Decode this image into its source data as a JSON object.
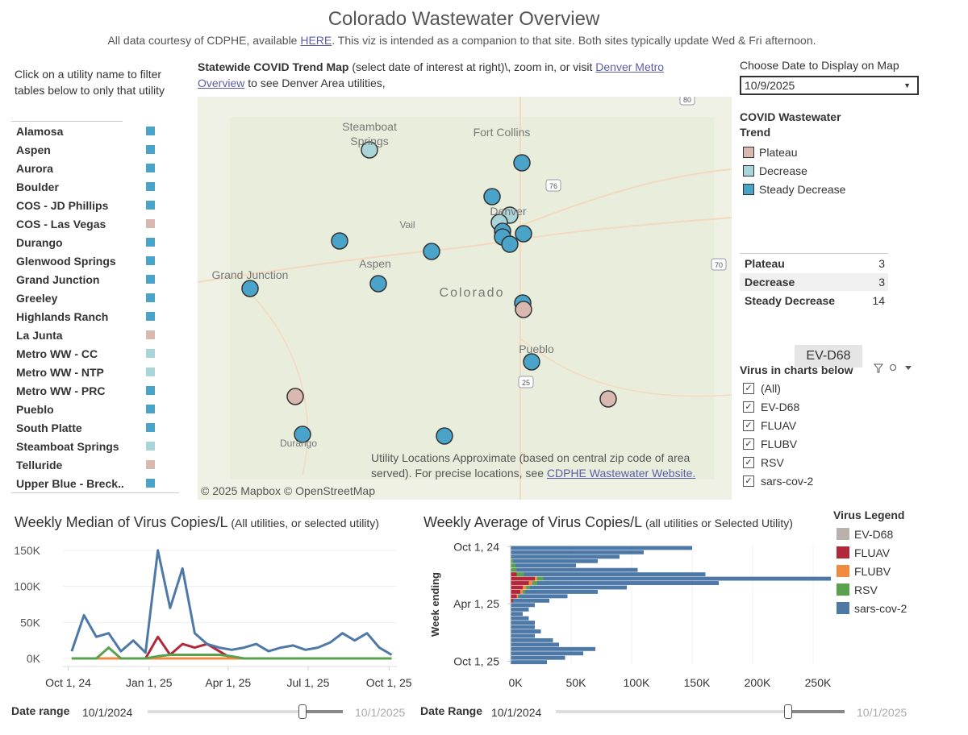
{
  "header": {
    "title": "Colorado Wastewater Overview",
    "subtitle_pre": "All data courtesy of CDPHE, available ",
    "subtitle_link": "HERE",
    "subtitle_post": ". This viz is intended as a companion to that site. Both sites typically update Wed & Fri afternoon."
  },
  "sidebar": {
    "instruction": "Click on a utility name to filter tables below to only that utility",
    "utilities": [
      {
        "name": "Alamosa",
        "color": "#4aa3c8"
      },
      {
        "name": "Aspen",
        "color": "#4aa3c8"
      },
      {
        "name": "Aurora",
        "color": "#4aa3c8"
      },
      {
        "name": "Boulder",
        "color": "#4aa3c8"
      },
      {
        "name": "COS - JD Phillips",
        "color": "#4aa3c8"
      },
      {
        "name": "COS - Las Vegas",
        "color": "#d9b8b0"
      },
      {
        "name": "Durango",
        "color": "#4aa3c8"
      },
      {
        "name": "Glenwood Springs",
        "color": "#4aa3c8"
      },
      {
        "name": "Grand Junction",
        "color": "#4aa3c8"
      },
      {
        "name": "Greeley",
        "color": "#4aa3c8"
      },
      {
        "name": "Highlands Ranch",
        "color": "#4aa3c8"
      },
      {
        "name": "La Junta",
        "color": "#d9b8b0"
      },
      {
        "name": "Metro WW - CC",
        "color": "#a9d5d8"
      },
      {
        "name": "Metro WW - NTP",
        "color": "#a9d5d8"
      },
      {
        "name": "Metro WW - PRC",
        "color": "#4aa3c8"
      },
      {
        "name": "Pueblo",
        "color": "#4aa3c8"
      },
      {
        "name": "South Platte",
        "color": "#4aa3c8"
      },
      {
        "name": "Steamboat Springs",
        "color": "#a9d5d8"
      },
      {
        "name": "Telluride",
        "color": "#d9b8b0"
      },
      {
        "name": "Upper Blue - Breck..",
        "color": "#4aa3c8"
      }
    ]
  },
  "map": {
    "heading_bold": "Statewide COVID Trend Map",
    "heading_rest": " (select date of interest at right)\\, zoom in, or visit ",
    "heading_link": "Denver Metro Overview",
    "heading_end": "  to see Denver Area  utilities,",
    "places": [
      "Steamboat",
      "Springs",
      "Fort Collins",
      "Denver",
      "Vail",
      "Aspen",
      "Grand Junction",
      "Colorado",
      "Pueblo",
      "Durango"
    ],
    "shields": [
      "80",
      "76",
      "70",
      "25"
    ],
    "note": "Utility Locations Approximate (based on central zip code of area served).  For precise locations, see ",
    "note_link": "CDPHE Wastewater Website.",
    "attribution": "© 2025 Mapbox © OpenStreetMap"
  },
  "date_picker": {
    "label": "Choose Date to Display on Map",
    "value": "10/9/2025"
  },
  "trend_legend": {
    "title": "COVID Wastewater Trend",
    "items": [
      {
        "name": "Plateau",
        "color": "#d9b8b0"
      },
      {
        "name": "Decrease",
        "color": "#a9d5d8"
      },
      {
        "name": "Steady Decrease",
        "color": "#4aa3c8"
      }
    ]
  },
  "trend_counts": [
    {
      "name": "Plateau",
      "count": 3
    },
    {
      "name": "Decrease",
      "count": 3
    },
    {
      "name": "Steady Decrease",
      "count": 14
    }
  ],
  "tooltip": "EV-D68",
  "virus_filter": {
    "title": "Virus in charts below",
    "options": [
      "(All)",
      "EV-D68",
      "FLUAV",
      "FLUBV",
      "RSV",
      "sars-cov-2"
    ]
  },
  "chart_data": [
    {
      "type": "line",
      "title": "Weekly Median of Virus Copies/L",
      "subtitle": " (All utilities, or selected utility)",
      "x": [
        "2024-10-05",
        "2024-10-19",
        "2024-11-02",
        "2024-11-16",
        "2024-11-30",
        "2024-12-14",
        "2024-12-28",
        "2025-01-11",
        "2025-01-25",
        "2025-02-08",
        "2025-02-22",
        "2025-03-08",
        "2025-03-22",
        "2025-04-05",
        "2025-04-19",
        "2025-05-03",
        "2025-05-17",
        "2025-05-31",
        "2025-06-14",
        "2025-06-28",
        "2025-07-12",
        "2025-07-26",
        "2025-08-09",
        "2025-08-23",
        "2025-09-06",
        "2025-09-20",
        "2025-10-04"
      ],
      "series": [
        {
          "name": "EV-D68",
          "color": "#bab0ac",
          "values": [
            0,
            0,
            0,
            0,
            0,
            0,
            0,
            0,
            0,
            0,
            0,
            0,
            0,
            0,
            0,
            0,
            0,
            0,
            0,
            0,
            0,
            0,
            0,
            0,
            0,
            0,
            0
          ]
        },
        {
          "name": "FLUAV",
          "color": "#b1283a",
          "values": [
            0,
            0,
            0,
            0,
            0,
            0,
            0,
            30000,
            5000,
            20000,
            15000,
            20000,
            10000,
            0,
            0,
            0,
            0,
            0,
            0,
            0,
            0,
            0,
            0,
            0,
            0,
            0,
            0
          ]
        },
        {
          "name": "FLUBV",
          "color": "#ef8a3e",
          "values": [
            0,
            0,
            0,
            0,
            0,
            0,
            0,
            0,
            0,
            0,
            0,
            0,
            0,
            0,
            0,
            0,
            0,
            0,
            0,
            0,
            0,
            0,
            0,
            0,
            0,
            0,
            0
          ]
        },
        {
          "name": "RSV",
          "color": "#59a14f",
          "values": [
            0,
            0,
            0,
            15000,
            0,
            0,
            0,
            3000,
            5000,
            5000,
            5000,
            5000,
            5000,
            3000,
            0,
            0,
            0,
            0,
            0,
            0,
            0,
            0,
            0,
            0,
            0,
            0,
            0
          ]
        },
        {
          "name": "sars-cov-2",
          "color": "#4e79a7",
          "values": [
            10000,
            60000,
            30000,
            35000,
            10000,
            25000,
            8000,
            150000,
            70000,
            125000,
            35000,
            20000,
            15000,
            12000,
            15000,
            20000,
            10000,
            15000,
            18000,
            12000,
            15000,
            22000,
            35000,
            25000,
            35000,
            15000,
            5000
          ]
        }
      ],
      "xlim": [
        "2024-09-25",
        "2025-10-10"
      ],
      "xticks": [
        {
          "value": "2024-10-01",
          "label": "Oct 1, 24"
        },
        {
          "value": "2025-01-01",
          "label": "Jan 1, 25"
        },
        {
          "value": "2025-04-01",
          "label": "Apr 1, 25"
        },
        {
          "value": "2025-07-01",
          "label": "Jul 1, 25"
        },
        {
          "value": "2025-10-01",
          "label": "Oct 1, 25"
        }
      ],
      "ylim": [
        0,
        160000
      ],
      "yticks": [
        {
          "value": 0,
          "label": "0K"
        },
        {
          "value": 50000,
          "label": "50K"
        },
        {
          "value": 100000,
          "label": "100K"
        },
        {
          "value": 150000,
          "label": "150K"
        }
      ],
      "grid": true
    },
    {
      "type": "bar",
      "orientation": "horizontal",
      "stacked": true,
      "title": "Weekly Average of Virus Copies/L",
      "subtitle": " (all utilities or Selected Utility)",
      "y_label": "Week ending",
      "legend_title": "Virus Legend",
      "y": [
        "2024-10-05",
        "2024-10-19",
        "2024-11-02",
        "2024-11-16",
        "2024-11-30",
        "2024-12-14",
        "2024-12-28",
        "2025-01-11",
        "2025-01-25",
        "2025-02-08",
        "2025-02-22",
        "2025-03-08",
        "2025-03-22",
        "2025-04-05",
        "2025-04-19",
        "2025-05-03",
        "2025-05-17",
        "2025-05-31",
        "2025-06-14",
        "2025-06-28",
        "2025-07-12",
        "2025-07-26",
        "2025-08-09",
        "2025-08-23",
        "2025-09-06",
        "2025-09-20",
        "2025-10-04"
      ],
      "series": [
        {
          "name": "EV-D68",
          "color": "#bab0ac",
          "values": [
            0,
            0,
            0,
            0,
            0,
            0,
            0,
            0,
            0,
            0,
            0,
            0,
            0,
            0,
            0,
            0,
            0,
            0,
            0,
            0,
            0,
            0,
            0,
            0,
            0,
            0,
            0
          ]
        },
        {
          "name": "FLUAV",
          "color": "#b1283a",
          "values": [
            0,
            0,
            0,
            0,
            0,
            0,
            5000,
            20000,
            15000,
            10000,
            8000,
            5000,
            2000,
            0,
            0,
            0,
            0,
            0,
            0,
            0,
            0,
            0,
            0,
            0,
            0,
            0,
            0
          ]
        },
        {
          "name": "FLUBV",
          "color": "#ef8a3e",
          "values": [
            0,
            0,
            0,
            0,
            0,
            0,
            0,
            2000,
            3000,
            3000,
            2000,
            1000,
            0,
            0,
            0,
            0,
            0,
            0,
            0,
            0,
            0,
            0,
            0,
            0,
            0,
            0,
            0
          ]
        },
        {
          "name": "RSV",
          "color": "#59a14f",
          "values": [
            0,
            0,
            0,
            2000,
            4000,
            5000,
            6000,
            5000,
            4000,
            3000,
            2000,
            1000,
            0,
            0,
            0,
            0,
            0,
            0,
            0,
            0,
            0,
            0,
            0,
            0,
            0,
            0,
            0
          ]
        },
        {
          "name": "sars-cov-2",
          "color": "#4e79a7",
          "values": [
            150000,
            110000,
            90000,
            70000,
            50000,
            100000,
            150000,
            240000,
            150000,
            80000,
            60000,
            40000,
            30000,
            20000,
            15000,
            10000,
            15000,
            20000,
            20000,
            25000,
            20000,
            35000,
            40000,
            70000,
            60000,
            45000,
            30000
          ]
        }
      ],
      "xlim": [
        0,
        260000
      ],
      "xticks": [
        {
          "value": 0,
          "label": "0K"
        },
        {
          "value": 50000,
          "label": "50K"
        },
        {
          "value": 100000,
          "label": "100K"
        },
        {
          "value": 150000,
          "label": "150K"
        },
        {
          "value": 200000,
          "label": "200K"
        },
        {
          "value": 250000,
          "label": "250K"
        }
      ],
      "ylim": [
        "2024-09-25",
        "2025-10-10"
      ],
      "yticks": [
        {
          "value": "2024-10-01",
          "label": "Oct 1, 24"
        },
        {
          "value": "2025-04-01",
          "label": "Apr 1, 25"
        },
        {
          "value": "2025-10-01",
          "label": "Oct 1, 25"
        }
      ]
    }
  ],
  "date_ranges": [
    {
      "label": "Date range",
      "start": "10/1/2024",
      "end": "10/1/2025"
    },
    {
      "label": "Date Range",
      "start": "10/1/2024",
      "end": "10/1/2025"
    }
  ]
}
